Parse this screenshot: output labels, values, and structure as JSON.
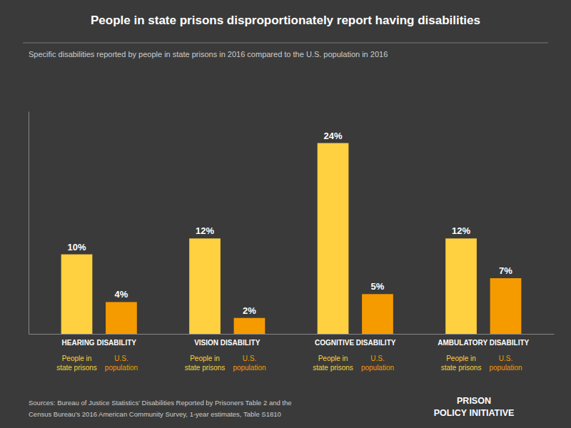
{
  "chart_data": {
    "type": "bar",
    "title": "People in state prisons disproportionately report having disabilities",
    "subtitle": "Specific disabilities reported by people in state prisons in 2016 compared to the U.S. population in 2016",
    "categories": [
      "HEARING DISABILITY",
      "VISION DISABILITY",
      "COGNITIVE DISABILITY",
      "AMBULATORY DISABILITY"
    ],
    "series": [
      {
        "name": "People in state prisons",
        "color": "#FFD040",
        "values": [
          10,
          12,
          24,
          12
        ],
        "value_labels": [
          "10%",
          "12%",
          "24%",
          "12%"
        ]
      },
      {
        "name": "U.S. population",
        "color": "#F59B00",
        "values": [
          4,
          2,
          5,
          7
        ],
        "value_labels": [
          "4%",
          "2%",
          "5%",
          "7%"
        ]
      }
    ],
    "ylim": [
      0,
      28
    ],
    "data_labels": true,
    "tick_labels": "x",
    "grid": false,
    "annotations": [
      "Sources: Bureau of Justice Statistics’ Disabilities Reported by Prisoners Table 2 and the",
      "Census Bureau’s 2016 American Community Survey, 1-year estimates, Table S1810",
      "PRISON",
      "POLICY INITIATIVE"
    ]
  }
}
